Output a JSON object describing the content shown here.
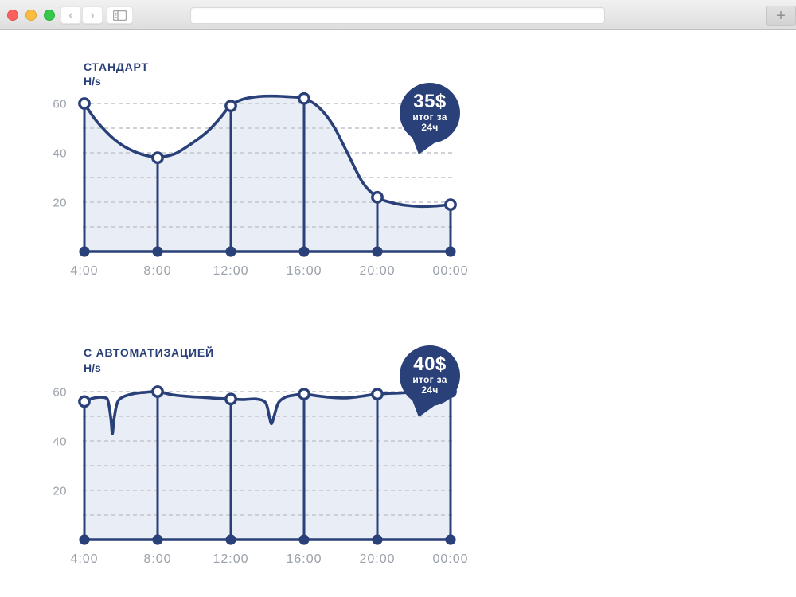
{
  "theme": {
    "navy": "#2A4078",
    "area_fill": "#E9EDF6",
    "label_gray": "#9BA1AA",
    "grid_gray": "#C9CCD2",
    "badge_text_color": "#FFFFFF"
  },
  "browser": {
    "traffic_lights": [
      {
        "name": "close",
        "color": "#FC605C"
      },
      {
        "name": "minimize",
        "color": "#FDBC40"
      },
      {
        "name": "zoom",
        "color": "#34C749"
      }
    ],
    "back_glyph": "‹",
    "forward_glyph": "›",
    "new_tab_glyph": "+",
    "url_value": ""
  },
  "chart_data": [
    {
      "type": "area",
      "title": "СТАНДАРТ",
      "ylabel": "H/s",
      "xlabel": "",
      "categories": [
        "4:00",
        "8:00",
        "12:00",
        "16:00",
        "20:00",
        "00:00"
      ],
      "hours": [
        4,
        8,
        12,
        16,
        20,
        24
      ],
      "values": [
        60,
        38,
        59,
        62,
        22,
        19
      ],
      "yticks": [
        20,
        40,
        60
      ],
      "ylim": [
        0,
        65
      ],
      "xlim_hours": [
        4,
        24
      ],
      "grid": "horizontal-dashed",
      "grid_step": 10,
      "badge": {
        "value": "35$",
        "caption_line1": "итог за",
        "caption_line2": "24ч"
      },
      "curve": [
        [
          4,
          60
        ],
        [
          4.6,
          53.5
        ],
        [
          5.4,
          47
        ],
        [
          6.2,
          42.5
        ],
        [
          7.1,
          39.5
        ],
        [
          8,
          38.3
        ],
        [
          8.9,
          39.5
        ],
        [
          9.8,
          43.5
        ],
        [
          10.7,
          48.5
        ],
        [
          11.4,
          54
        ],
        [
          12,
          59.3
        ],
        [
          12.7,
          61.8
        ],
        [
          13.5,
          62.8
        ],
        [
          14.3,
          63
        ],
        [
          15.2,
          62.7
        ],
        [
          16,
          62
        ],
        [
          16.8,
          58.5
        ],
        [
          17.6,
          51
        ],
        [
          18.4,
          39.5
        ],
        [
          19.2,
          28
        ],
        [
          20,
          22
        ],
        [
          20.8,
          19.8
        ],
        [
          21.6,
          18.7
        ],
        [
          22.4,
          18.3
        ],
        [
          23.2,
          18.5
        ],
        [
          24,
          19
        ]
      ]
    },
    {
      "type": "area",
      "title": "С АВТОМАТИЗАЦИЕЙ",
      "ylabel": "H/s",
      "xlabel": "",
      "categories": [
        "4:00",
        "8:00",
        "12:00",
        "16:00",
        "20:00",
        "00:00"
      ],
      "hours": [
        4,
        8,
        12,
        16,
        20,
        24
      ],
      "values": [
        56,
        60,
        57,
        59,
        59,
        60
      ],
      "yticks": [
        20,
        40,
        60
      ],
      "ylim": [
        0,
        65
      ],
      "xlim_hours": [
        4,
        24
      ],
      "grid": "horizontal-dashed",
      "grid_step": 10,
      "badge": {
        "value": "40$",
        "caption_line1": "итог за",
        "caption_line2": "24ч"
      },
      "curve": [
        [
          4,
          56
        ],
        [
          4.4,
          57.2
        ],
        [
          4.8,
          57.7
        ],
        [
          5.15,
          57.5
        ],
        [
          5.3,
          56
        ],
        [
          5.45,
          49
        ],
        [
          5.53,
          43
        ],
        [
          5.62,
          49
        ],
        [
          5.8,
          55.5
        ],
        [
          6.1,
          57.8
        ],
        [
          6.7,
          59.2
        ],
        [
          7.3,
          59.7
        ],
        [
          8,
          60
        ],
        [
          8.8,
          58.7
        ],
        [
          9.6,
          58.1
        ],
        [
          10.4,
          57.7
        ],
        [
          11.2,
          57.3
        ],
        [
          12,
          57
        ],
        [
          12.7,
          56.8
        ],
        [
          13.4,
          57
        ],
        [
          13.9,
          55.5
        ],
        [
          14.1,
          50
        ],
        [
          14.22,
          47
        ],
        [
          14.38,
          50.5
        ],
        [
          14.6,
          55.5
        ],
        [
          15,
          57.8
        ],
        [
          15.5,
          58.6
        ],
        [
          16,
          59
        ],
        [
          16.8,
          58.2
        ],
        [
          17.6,
          57.6
        ],
        [
          18.4,
          57.5
        ],
        [
          19.2,
          58.2
        ],
        [
          20,
          59
        ],
        [
          21,
          59.4
        ],
        [
          22,
          59.7
        ],
        [
          23,
          59.9
        ],
        [
          24,
          60
        ]
      ]
    }
  ]
}
